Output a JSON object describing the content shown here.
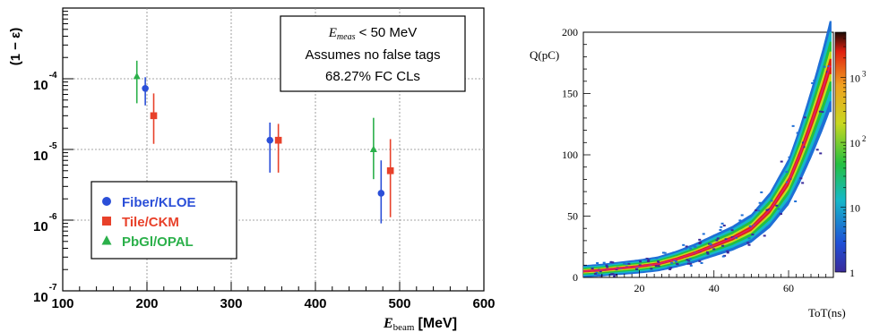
{
  "chart_data": [
    {
      "type": "scatter",
      "title": "",
      "xlabel_main": "E",
      "xlabel_sub": "beam",
      "xlabel_unit": "[MeV]",
      "ylabel": "(1 − ε)",
      "log_y": true,
      "xlim": [
        100,
        600
      ],
      "ylim": [
        1e-07,
        0.001
      ],
      "x_ticks": [
        "100",
        "200",
        "300",
        "400",
        "500",
        "600"
      ],
      "y_ticks": [
        {
          "base": "10",
          "exp": "-7"
        },
        {
          "base": "10",
          "exp": "-6"
        },
        {
          "base": "10",
          "exp": "-5"
        },
        {
          "base": "10",
          "exp": "-4"
        }
      ],
      "grid": true,
      "legend_position": "bottom-left",
      "annotation": {
        "line1_main": "E",
        "line1_sub": "meas",
        "line1_rest": " < 50 MeV",
        "line2": "Assumes no false tags",
        "line3": "68.27% FC CLs"
      },
      "series": [
        {
          "name": "Fiber/KLOE",
          "color": "#2b4fd8",
          "marker": "circle",
          "points": [
            {
              "x": 198,
              "y": 7.3e-05,
              "lo": 4.2e-05,
              "hi": 0.000105
            },
            {
              "x": 346,
              "y": 1.35e-05,
              "lo": 4.7e-06,
              "hi": 2.4e-05
            },
            {
              "x": 478,
              "y": 2.4e-06,
              "lo": 9e-07,
              "hi": 7e-06
            }
          ]
        },
        {
          "name": "Tile/CKM",
          "color": "#e8412a",
          "marker": "square",
          "points": [
            {
              "x": 208,
              "y": 3e-05,
              "lo": 1.2e-05,
              "hi": 6.2e-05
            },
            {
              "x": 356,
              "y": 1.35e-05,
              "lo": 4.7e-06,
              "hi": 2.3e-05
            },
            {
              "x": 489,
              "y": 5e-06,
              "lo": 1.1e-06,
              "hi": 1.4e-05
            }
          ]
        },
        {
          "name": "PbGl/OPAL",
          "color": "#2bb04a",
          "marker": "triangle",
          "points": [
            {
              "x": 188,
              "y": 0.000108,
              "lo": 4.5e-05,
              "hi": 0.00018
            },
            {
              "x": 469,
              "y": 1e-05,
              "lo": 3.8e-06,
              "hi": 2.8e-05
            }
          ]
        }
      ]
    },
    {
      "type": "heatmap",
      "title": "",
      "xlabel": "ToT(ns)",
      "ylabel": "Q(pC)",
      "xlim": [
        5,
        72
      ],
      "ylim": [
        0,
        200
      ],
      "x_ticks": [
        "20",
        "40",
        "60"
      ],
      "y_ticks": [
        "0",
        "50",
        "100",
        "150",
        "200"
      ],
      "colorbar_ticks": [
        {
          "base": "1",
          "exp": ""
        },
        {
          "base": "10",
          "exp": ""
        },
        {
          "base": "10",
          "exp": "2"
        },
        {
          "base": "10",
          "exp": "3"
        }
      ],
      "colorbar_range": [
        1,
        5000
      ],
      "colors": [
        "#ffffff",
        "#3a2a9a",
        "#1f6fd6",
        "#15b8c8",
        "#23c040",
        "#c8d820",
        "#f0a020",
        "#e02010",
        "#1a0a05"
      ],
      "fit_color": "#e0206a",
      "band_points": [
        {
          "x": 5,
          "q": 5
        },
        {
          "x": 10,
          "q": 6
        },
        {
          "x": 15,
          "q": 7.5
        },
        {
          "x": 20,
          "q": 9
        },
        {
          "x": 25,
          "q": 11
        },
        {
          "x": 30,
          "q": 15
        },
        {
          "x": 35,
          "q": 20
        },
        {
          "x": 40,
          "q": 26
        },
        {
          "x": 45,
          "q": 32
        },
        {
          "x": 50,
          "q": 40
        },
        {
          "x": 55,
          "q": 55
        },
        {
          "x": 60,
          "q": 78
        },
        {
          "x": 63,
          "q": 100
        },
        {
          "x": 66,
          "q": 125
        },
        {
          "x": 69,
          "q": 152
        },
        {
          "x": 71,
          "q": 172
        }
      ]
    }
  ]
}
